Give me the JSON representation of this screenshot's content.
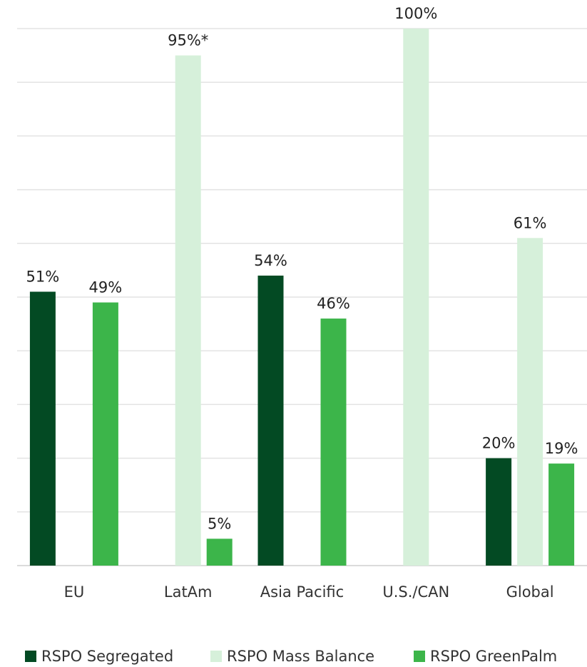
{
  "chart_data": {
    "type": "bar",
    "categories": [
      "EU",
      "LatAm",
      "Asia Pacific",
      "U.S./CAN",
      "Global"
    ],
    "series": [
      {
        "name": "RSPO Segregated",
        "color": "#034a23",
        "values": [
          51,
          null,
          54,
          null,
          20
        ],
        "value_labels": [
          "51%",
          null,
          "54%",
          null,
          "20%"
        ]
      },
      {
        "name": "RSPO Mass Balance",
        "color": "#d6f0da",
        "values": [
          null,
          95,
          null,
          100,
          61
        ],
        "value_labels": [
          null,
          "95%*",
          null,
          "100%",
          "61%"
        ]
      },
      {
        "name": "RSPO GreenPalm",
        "color": "#3cb54a",
        "values": [
          49,
          5,
          46,
          null,
          19
        ],
        "value_labels": [
          "49%",
          "5%",
          "46%",
          null,
          "19%"
        ]
      }
    ],
    "ylim": [
      0,
      100
    ],
    "yticks": [
      0,
      10,
      20,
      30,
      40,
      50,
      60,
      70,
      80,
      90,
      100
    ],
    "grid": true
  }
}
